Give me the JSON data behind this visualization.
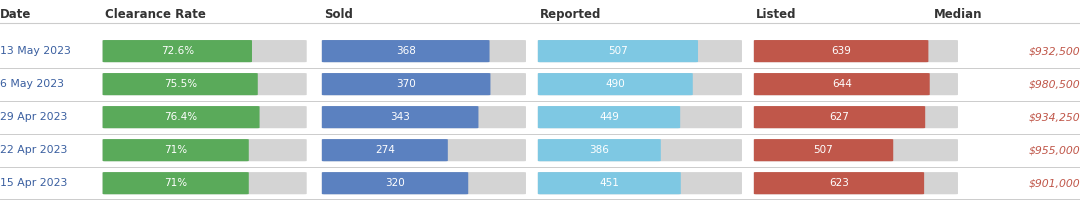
{
  "headers": [
    "Date",
    "Clearance Rate",
    "Sold",
    "Reported",
    "Listed",
    "Median"
  ],
  "rows": [
    {
      "date": "13 May 2023",
      "clearance_rate": 72.6,
      "clearance_label": "72.6%",
      "sold": 368,
      "reported": 507,
      "listed": 639,
      "median": "$932,500"
    },
    {
      "date": "6 May 2023",
      "clearance_rate": 75.5,
      "clearance_label": "75.5%",
      "sold": 370,
      "reported": 490,
      "listed": 644,
      "median": "$980,500"
    },
    {
      "date": "29 Apr 2023",
      "clearance_rate": 76.4,
      "clearance_label": "76.4%",
      "sold": 343,
      "reported": 449,
      "listed": 627,
      "median": "$934,250"
    },
    {
      "date": "22 Apr 2023",
      "clearance_rate": 71.0,
      "clearance_label": "71%",
      "sold": 274,
      "reported": 386,
      "listed": 507,
      "median": "$955,000"
    },
    {
      "date": "15 Apr 2023",
      "clearance_rate": 71.0,
      "clearance_label": "71%",
      "sold": 320,
      "reported": 451,
      "listed": 623,
      "median": "$901,000"
    }
  ],
  "colors": {
    "green": "#5aaa5a",
    "grey": "#d4d4d4",
    "blue": "#5b81c0",
    "light_blue": "#7ec8e3",
    "red": "#c0574a",
    "date_text": "#3a5fa0",
    "header_text": "#333333",
    "median_text": "#c0574a",
    "bar_text": "#ffffff",
    "background": "#ffffff",
    "divider": "#cccccc"
  },
  "max_clearance": 100,
  "max_sold": 450,
  "max_reported": 650,
  "max_listed": 750
}
